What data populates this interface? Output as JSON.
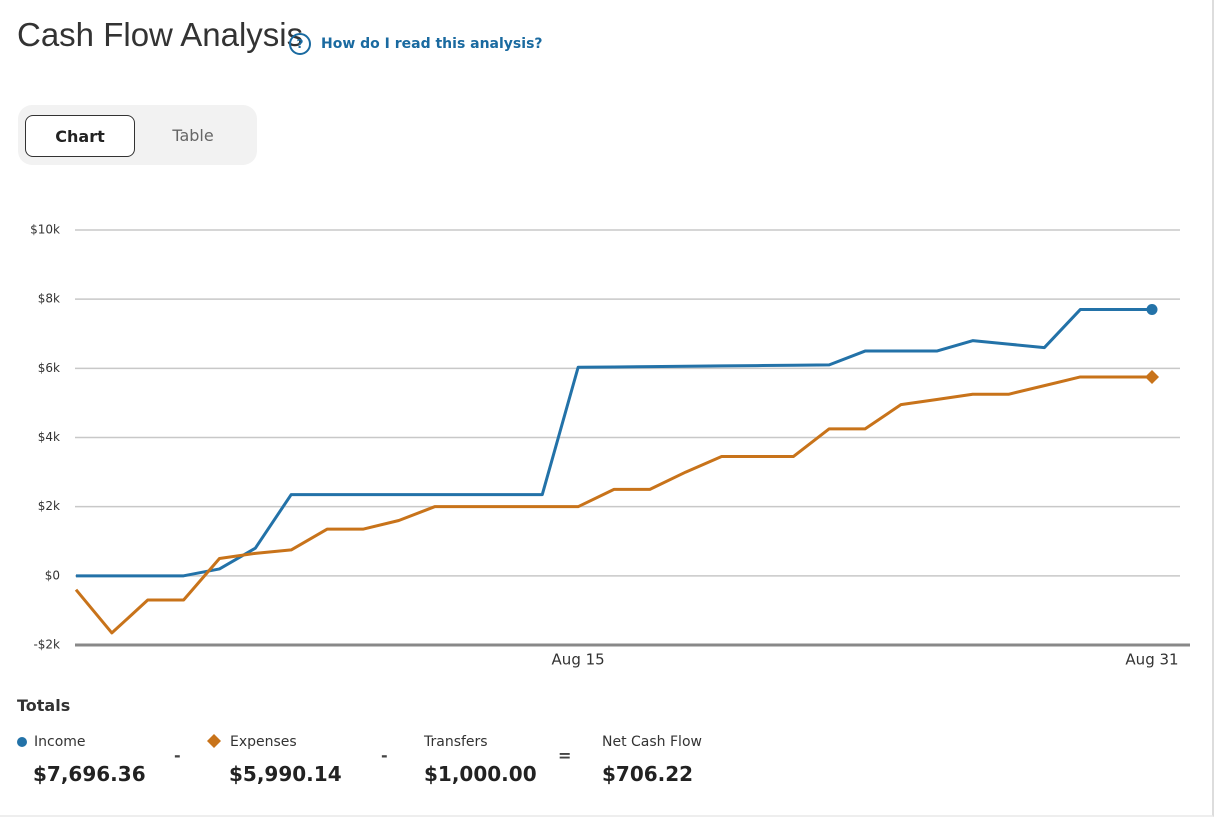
{
  "header": {
    "title": "Cash Flow Analysis",
    "help_icon": "?",
    "help_link": "How do I read this analysis?"
  },
  "view_toggle": {
    "options": [
      "Chart",
      "Table"
    ]
  },
  "chart_data": {
    "type": "line",
    "categories": [
      null,
      null,
      null,
      null,
      null,
      null,
      null,
      null,
      null,
      null,
      null,
      null,
      null,
      null,
      "Aug 15",
      null,
      null,
      null,
      null,
      null,
      null,
      null,
      null,
      null,
      null,
      null,
      null,
      null,
      null,
      null,
      "Aug 31"
    ],
    "series": [
      {
        "name": "Income",
        "color": "#2372a8",
        "marker": "circle",
        "values": [
          0,
          0,
          0,
          0,
          200,
          800,
          2350,
          2350,
          2350,
          2350,
          2350,
          2350,
          2350,
          2350,
          6030,
          6040,
          6050,
          6060,
          6070,
          6080,
          6090,
          6100,
          6500,
          6500,
          6500,
          6800,
          6700,
          6600,
          7700,
          7700,
          7700
        ]
      },
      {
        "name": "Expenses",
        "color": "#c8731a",
        "marker": "diamond",
        "values": [
          -400,
          -1650,
          -700,
          -700,
          500,
          650,
          750,
          1350,
          1350,
          1600,
          2000,
          2000,
          2000,
          2000,
          2000,
          2500,
          2500,
          3000,
          3450,
          3450,
          3450,
          4250,
          4250,
          4950,
          5100,
          5250,
          5250,
          5500,
          5750,
          5750,
          5750
        ]
      }
    ],
    "ylim": [
      -2000,
      10000
    ],
    "yticks": [
      {
        "value": -2000,
        "label": "-$2k"
      },
      {
        "value": 0,
        "label": "$0"
      },
      {
        "value": 2000,
        "label": "$2k"
      },
      {
        "value": 4000,
        "label": "$4k"
      },
      {
        "value": 6000,
        "label": "$6k"
      },
      {
        "value": 8000,
        "label": "$8k"
      },
      {
        "value": 10000,
        "label": "$10k"
      }
    ],
    "grid": true
  },
  "totals": {
    "title": "Totals",
    "items": [
      {
        "value": "$7,696.36"
      },
      {
        "value": "$5,990.14"
      },
      {
        "label": "Transfers",
        "value": "$1,000.00"
      },
      {
        "label": "Net Cash Flow",
        "value": "$706.22"
      }
    ],
    "operators": [
      "-",
      "-",
      "="
    ]
  }
}
